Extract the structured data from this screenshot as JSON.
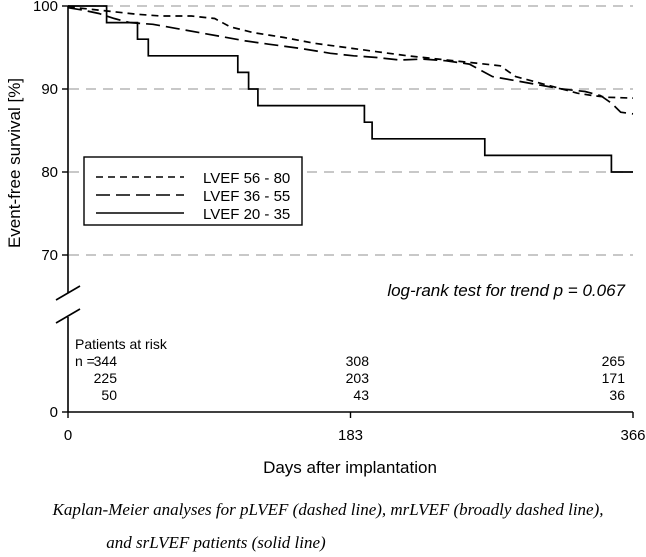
{
  "chart_data": {
    "type": "line",
    "subtype": "kaplan-meier",
    "xlabel": "Days after implantation",
    "ylabel": "Event-free survival [%]",
    "x_ticks": [
      "0",
      "183",
      "366"
    ],
    "x_tick_values": [
      0,
      183,
      366
    ],
    "xlim": [
      0,
      366
    ],
    "y_ticks_upper": [
      "100",
      "90",
      "80",
      "70"
    ],
    "y_tick_values_upper": [
      100,
      90,
      80,
      70
    ],
    "ylim_upper": [
      66,
      100
    ],
    "y_tick_lower": "0",
    "axis_break": true,
    "grid": "horizontal dashed at 70, 80, 90, 100",
    "legend_position": "left-center",
    "annotation": "log-rank test for trend p = 0.067",
    "series": [
      {
        "name": "LVEF 56 - 80",
        "style": "dashed",
        "points": [
          [
            0,
            100
          ],
          [
            5,
            99.8
          ],
          [
            15,
            99.6
          ],
          [
            30,
            99.3
          ],
          [
            45,
            99
          ],
          [
            60,
            98.8
          ],
          [
            80,
            98.8
          ],
          [
            95,
            98.5
          ],
          [
            105,
            97.5
          ],
          [
            120,
            96.8
          ],
          [
            140,
            96.2
          ],
          [
            160,
            95.5
          ],
          [
            180,
            95
          ],
          [
            200,
            94.5
          ],
          [
            220,
            94
          ],
          [
            240,
            93.6
          ],
          [
            260,
            93.2
          ],
          [
            280,
            92.8
          ],
          [
            290,
            91.5
          ],
          [
            300,
            91
          ],
          [
            310,
            90.5
          ],
          [
            320,
            90
          ],
          [
            330,
            89.5
          ],
          [
            340,
            89.2
          ],
          [
            350,
            89
          ],
          [
            366,
            88.9
          ]
        ]
      },
      {
        "name": "LVEF 36 - 55",
        "style": "long-dashed",
        "points": [
          [
            0,
            99.8
          ],
          [
            10,
            99.5
          ],
          [
            20,
            99.1
          ],
          [
            30,
            98.5
          ],
          [
            40,
            98.0
          ],
          [
            55,
            97.8
          ],
          [
            70,
            97.3
          ],
          [
            85,
            96.8
          ],
          [
            100,
            96.3
          ],
          [
            115,
            95.8
          ],
          [
            130,
            95.4
          ],
          [
            150,
            94.9
          ],
          [
            170,
            94.3
          ],
          [
            185,
            94
          ],
          [
            200,
            93.8
          ],
          [
            215,
            93.5
          ],
          [
            230,
            93.6
          ],
          [
            245,
            93.4
          ],
          [
            260,
            93
          ],
          [
            275,
            91.5
          ],
          [
            290,
            91
          ],
          [
            305,
            90.5
          ],
          [
            320,
            90
          ],
          [
            335,
            89.7
          ],
          [
            345,
            89.2
          ],
          [
            352,
            88.3
          ],
          [
            358,
            87.2
          ],
          [
            366,
            87
          ]
        ]
      },
      {
        "name": "LVEF 20 - 35",
        "style": "solid",
        "points": [
          [
            0,
            100
          ],
          [
            25,
            100
          ],
          [
            25,
            98
          ],
          [
            45,
            98
          ],
          [
            45,
            96
          ],
          [
            52,
            96
          ],
          [
            52,
            94
          ],
          [
            110,
            94
          ],
          [
            110,
            92
          ],
          [
            117,
            92
          ],
          [
            117,
            90
          ],
          [
            123,
            90
          ],
          [
            123,
            88
          ],
          [
            192,
            88
          ],
          [
            192,
            86
          ],
          [
            197,
            86
          ],
          [
            197,
            84
          ],
          [
            270,
            84
          ],
          [
            270,
            82
          ],
          [
            352,
            82
          ],
          [
            352,
            80
          ],
          [
            366,
            80
          ]
        ]
      }
    ],
    "risk_table": {
      "title": "Patients at risk",
      "prefix": "n = ",
      "rows": [
        [
          "344",
          "308",
          "265"
        ],
        [
          "225",
          "203",
          "171"
        ],
        [
          "50",
          "43",
          "36"
        ]
      ]
    }
  },
  "caption": {
    "line1": "Kaplan-Meier analyses for pLVEF (dashed line), mrLVEF (broadly dashed line),",
    "line2": "and srLVEF patients  (solid line)"
  }
}
